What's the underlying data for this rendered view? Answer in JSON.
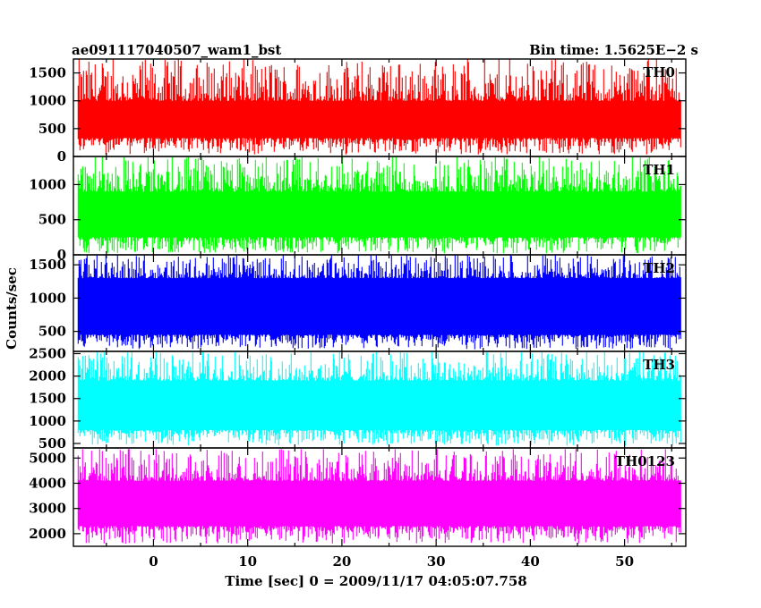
{
  "header": {
    "left": "ae091117040507_wam1_bst",
    "right": "Bin time: 1.5625E−2 s"
  },
  "chart_data": {
    "type": "line",
    "xlabel": "Time [sec] 0 = 2009/11/17 04:05:07.758",
    "ylabel": "Counts/sec",
    "xlim": [
      -8.5,
      56.5
    ],
    "xticks": [
      0,
      10,
      20,
      30,
      40,
      50
    ],
    "data_x_range": [
      -8,
      56
    ],
    "panels": [
      {
        "name": "TH0",
        "color": "#ff0000",
        "ylim": [
          0,
          1750
        ],
        "yticks": [
          0,
          500,
          1000,
          1500
        ],
        "band_low": 330,
        "band_high": 1000,
        "min": 30,
        "max": 1750
      },
      {
        "name": "TH1",
        "color": "#00ff00",
        "ylim": [
          0,
          1400
        ],
        "yticks": [
          0,
          500,
          1000
        ],
        "band_low": 250,
        "band_high": 900,
        "min": 20,
        "max": 1400
      },
      {
        "name": "TH2",
        "color": "#0000ff",
        "ylim": [
          200,
          1650
        ],
        "yticks": [
          500,
          1000,
          1500
        ],
        "band_low": 450,
        "band_high": 1300,
        "min": 230,
        "max": 1650
      },
      {
        "name": "TH3",
        "color": "#00ffff",
        "ylim": [
          400,
          2550
        ],
        "yticks": [
          500,
          1000,
          1500,
          2000,
          2500
        ],
        "band_low": 800,
        "band_high": 1900,
        "min": 450,
        "max": 2550
      },
      {
        "name": "TH0123",
        "color": "#ff00ff",
        "ylim": [
          1500,
          5400
        ],
        "yticks": [
          2000,
          3000,
          4000,
          5000
        ],
        "band_low": 2300,
        "band_high": 4100,
        "min": 1600,
        "max": 5350
      }
    ]
  }
}
